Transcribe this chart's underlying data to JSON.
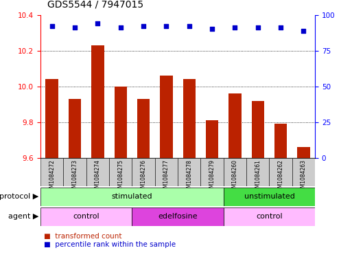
{
  "title": "GDS5544 / 7947015",
  "samples": [
    "GSM1084272",
    "GSM1084273",
    "GSM1084274",
    "GSM1084275",
    "GSM1084276",
    "GSM1084277",
    "GSM1084278",
    "GSM1084279",
    "GSM1084260",
    "GSM1084261",
    "GSM1084262",
    "GSM1084263"
  ],
  "bar_values": [
    10.04,
    9.93,
    10.23,
    10.0,
    9.93,
    10.06,
    10.04,
    9.81,
    9.96,
    9.92,
    9.79,
    9.66
  ],
  "percentile_values": [
    92,
    91,
    94,
    91,
    92,
    92,
    92,
    90,
    91,
    91,
    91,
    89
  ],
  "ylim_left": [
    9.6,
    10.4
  ],
  "ylim_right": [
    0,
    100
  ],
  "yticks_left": [
    9.6,
    9.8,
    10.0,
    10.2,
    10.4
  ],
  "yticks_right": [
    0,
    25,
    50,
    75,
    100
  ],
  "bar_color": "#bb2200",
  "dot_color": "#0000cc",
  "bar_width": 0.55,
  "protocol_rows": [
    {
      "label": "stimulated",
      "start": 0,
      "end": 8,
      "color": "#aaffaa"
    },
    {
      "label": "unstimulated",
      "start": 8,
      "end": 12,
      "color": "#44dd44"
    }
  ],
  "agent_rows": [
    {
      "label": "control",
      "start": 0,
      "end": 4,
      "color": "#ffbbff"
    },
    {
      "label": "edelfosine",
      "start": 4,
      "end": 8,
      "color": "#dd44dd"
    },
    {
      "label": "control",
      "start": 8,
      "end": 12,
      "color": "#ffbbff"
    }
  ],
  "legend_bar_label": "transformed count",
  "legend_dot_label": "percentile rank within the sample",
  "title_fontsize": 10,
  "tick_fontsize": 7.5,
  "label_fontsize": 8
}
